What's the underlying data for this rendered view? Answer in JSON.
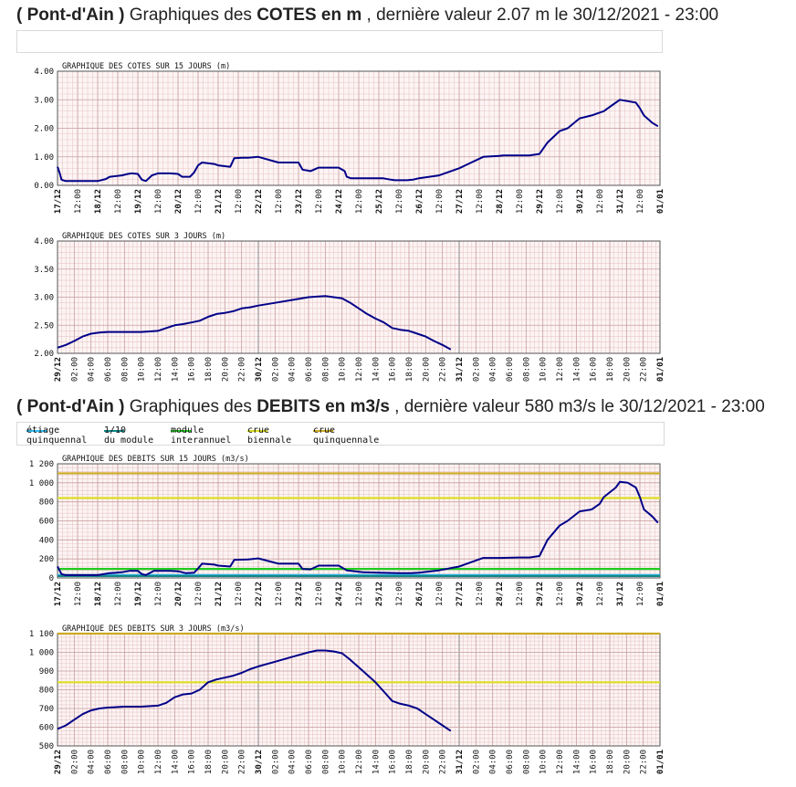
{
  "section1": {
    "title_pre": "( Pont-d'Ain )",
    "title_mid": " Graphiques des ",
    "title_bold": "COTES en m",
    "title_post": " , dernière valeur 2.07 m le 30/12/2021 - 23:00"
  },
  "section2": {
    "title_pre": "( Pont-d'Ain )",
    "title_mid": " Graphiques des ",
    "title_bold": "DEBITS en m3/s",
    "title_post": " , dernière valeur 580 m3/s le 30/12/2021 - 23:00"
  },
  "legend": {
    "items": [
      {
        "text": "étiage\nquinquennal",
        "color": "#33bbee"
      },
      {
        "text": "1/10\ndu module",
        "color": "#118888"
      },
      {
        "text": "module\ninterannuel",
        "color": "#22cc22"
      },
      {
        "text": "crue\nbiennale",
        "color": "#dddd22"
      },
      {
        "text": "crue\nquinquennale",
        "color": "#ccaa22"
      }
    ]
  },
  "colors": {
    "series": "#000088",
    "grid_minor": "#e8c8c8",
    "grid_major": "#c8a0a0",
    "plot_bg": "#fdf4f4"
  },
  "chart_data": [
    {
      "id": "c1",
      "type": "line",
      "title": "GRAPHIQUE DES COTES SUR 15 JOURS (m)",
      "ylim": [
        0,
        4
      ],
      "yticks": [
        0,
        1,
        2,
        3,
        4
      ],
      "ytick_labels": [
        "0.00",
        "1.00",
        "2.00",
        "3.00",
        "4.00"
      ],
      "xlim": [
        0,
        15
      ],
      "xticks": [
        0,
        0.5,
        1,
        1.5,
        2,
        2.5,
        3,
        3.5,
        4,
        4.5,
        5,
        5.5,
        6,
        6.5,
        7,
        7.5,
        8,
        8.5,
        9,
        9.5,
        10,
        10.5,
        11,
        11.5,
        12,
        12.5,
        13,
        13.5,
        14,
        14.5,
        15
      ],
      "xtick_labels": [
        "17/12",
        "12:00",
        "18/12",
        "12:00",
        "19/12",
        "12:00",
        "20/12",
        "12:00",
        "21/12",
        "12:00",
        "22/12",
        "12:00",
        "23/12",
        "12:00",
        "24/12",
        "12:00",
        "25/12",
        "12:00",
        "26/12",
        "12:00",
        "27/12",
        "12:00",
        "28/12",
        "12:00",
        "29/12",
        "12:00",
        "30/12",
        "12:00",
        "31/12",
        "12:00",
        "01/01"
      ],
      "series": [
        {
          "x": [
            0,
            0.05,
            0.1,
            0.2,
            0.5,
            1.0,
            1.2,
            1.3,
            1.6,
            1.75,
            1.85,
            2.0,
            2.1,
            2.2,
            2.35,
            2.5,
            2.8,
            3.0,
            3.1,
            3.3,
            3.4,
            3.5,
            3.6,
            3.9,
            4.0,
            4.3,
            4.4,
            4.6,
            4.75,
            5.0,
            5.5,
            5.65,
            5.7,
            6.0,
            6.1,
            6.3,
            6.5,
            6.6,
            7.0,
            7.15,
            7.2,
            7.3,
            7.6,
            7.9,
            8.1,
            8.3,
            8.4,
            8.55,
            8.6,
            8.7,
            8.85,
            9.0,
            9.5,
            10.0,
            10.6,
            11.0,
            11.1,
            11.2,
            11.3,
            11.5,
            11.7,
            11.75,
            12.0,
            12.2,
            12.5,
            12.7,
            13.0,
            13.3,
            13.5,
            13.6,
            13.8,
            14.0
          ],
          "y": [
            0.65,
            0.45,
            0.2,
            0.15,
            0.15,
            0.15,
            0.22,
            0.3,
            0.35,
            0.4,
            0.42,
            0.4,
            0.2,
            0.15,
            0.35,
            0.42,
            0.42,
            0.4,
            0.3,
            0.3,
            0.45,
            0.7,
            0.8,
            0.75,
            0.7,
            0.65,
            0.95,
            0.97,
            0.97,
            1.0,
            0.8,
            0.8,
            0.8,
            0.8,
            0.55,
            0.5,
            0.62,
            0.62,
            0.62,
            0.5,
            0.3,
            0.25,
            0.25,
            0.25,
            0.25,
            0.2,
            0.18,
            0.18,
            0.18,
            0.18,
            0.2,
            0.25,
            0.35,
            0.6,
            1.0,
            1.03,
            1.05,
            1.05,
            1.05,
            1.05,
            1.05,
            1.05,
            1.1,
            1.5,
            1.9,
            2.0,
            2.35,
            2.45,
            2.55,
            2.6,
            2.8,
            3.0
          ],
          "x_tail": [
            14.0,
            14.2,
            14.4,
            14.5,
            14.6,
            14.8,
            14.95
          ],
          "y_tail": [
            3.0,
            2.95,
            2.9,
            2.7,
            2.45,
            2.2,
            2.07
          ]
        }
      ]
    },
    {
      "id": "c2",
      "type": "line",
      "title": "GRAPHIQUE DES COTES SUR 3 JOURS (m)",
      "ylim": [
        2,
        4
      ],
      "yticks": [
        2,
        2.5,
        3,
        3.5,
        4
      ],
      "ytick_labels": [
        "2.00",
        "2.50",
        "3.00",
        "3.50",
        "4.00"
      ],
      "xlim": [
        0,
        72
      ],
      "xticks": [
        0,
        2,
        4,
        6,
        8,
        10,
        12,
        14,
        16,
        18,
        20,
        22,
        24,
        26,
        28,
        30,
        32,
        34,
        36,
        38,
        40,
        42,
        44,
        46,
        48,
        50,
        52,
        54,
        56,
        58,
        60,
        62,
        64,
        66,
        68,
        70,
        72
      ],
      "xtick_labels": [
        "29/12",
        "02:00",
        "04:00",
        "06:00",
        "08:00",
        "10:00",
        "12:00",
        "14:00",
        "16:00",
        "18:00",
        "20:00",
        "22:00",
        "30/12",
        "02:00",
        "04:00",
        "06:00",
        "08:00",
        "10:00",
        "12:00",
        "14:00",
        "16:00",
        "18:00",
        "20:00",
        "22:00",
        "31/12",
        "02:00",
        "04:00",
        "06:00",
        "08:00",
        "10:00",
        "12:00",
        "14:00",
        "16:00",
        "18:00",
        "20:00",
        "22:00",
        "01/01"
      ],
      "series": [
        {
          "x": [
            0,
            1,
            2,
            3,
            4,
            5,
            6,
            8,
            10,
            12,
            13,
            14,
            15,
            16,
            17,
            18,
            19,
            20,
            21,
            22,
            23,
            24,
            26,
            28,
            30,
            32,
            33,
            34,
            35,
            36,
            37,
            38,
            39,
            40,
            41,
            42,
            43,
            44,
            45,
            46,
            47
          ],
          "y": [
            2.1,
            2.15,
            2.22,
            2.3,
            2.35,
            2.37,
            2.38,
            2.38,
            2.38,
            2.4,
            2.45,
            2.5,
            2.52,
            2.55,
            2.58,
            2.65,
            2.7,
            2.72,
            2.75,
            2.8,
            2.82,
            2.85,
            2.9,
            2.95,
            3.0,
            3.02,
            3.0,
            2.98,
            2.9,
            2.8,
            2.7,
            2.62,
            2.55,
            2.45,
            2.42,
            2.4,
            2.35,
            2.3,
            2.22,
            2.15,
            2.07
          ]
        }
      ]
    },
    {
      "id": "c3",
      "type": "line",
      "title": "GRAPHIQUE DES DEBITS SUR 15 JOURS (m3/s)",
      "ylim": [
        0,
        1200
      ],
      "yticks": [
        0,
        200,
        400,
        600,
        800,
        1000,
        1200
      ],
      "ytick_labels": [
        "0",
        "200",
        "400",
        "600",
        "800",
        "1 000",
        "1 200"
      ],
      "xlim": [
        0,
        15
      ],
      "xticks": [
        0,
        0.5,
        1,
        1.5,
        2,
        2.5,
        3,
        3.5,
        4,
        4.5,
        5,
        5.5,
        6,
        6.5,
        7,
        7.5,
        8,
        8.5,
        9,
        9.5,
        10,
        10.5,
        11,
        11.5,
        12,
        12.5,
        13,
        13.5,
        14,
        14.5,
        15
      ],
      "xtick_labels": [
        "17/12",
        "12:00",
        "18/12",
        "12:00",
        "19/12",
        "12:00",
        "20/12",
        "12:00",
        "21/12",
        "12:00",
        "22/12",
        "12:00",
        "23/12",
        "12:00",
        "24/12",
        "12:00",
        "25/12",
        "12:00",
        "26/12",
        "12:00",
        "27/12",
        "12:00",
        "28/12",
        "12:00",
        "29/12",
        "12:00",
        "30/12",
        "12:00",
        "31/12",
        "12:00",
        "01/01"
      ],
      "thresholds": [
        {
          "value": 30,
          "color": "#33bbee"
        },
        {
          "value": 20,
          "color": "#118888"
        },
        {
          "value": 95,
          "color": "#22cc22"
        },
        {
          "value": 840,
          "color": "#dddd22"
        },
        {
          "value": 1100,
          "color": "#ccaa22"
        }
      ],
      "series": [
        {
          "x": [
            0,
            0.1,
            0.2,
            0.5,
            1.0,
            1.3,
            1.6,
            1.8,
            2.0,
            2.1,
            2.2,
            2.4,
            2.8,
            3.0,
            3.2,
            3.4,
            3.5,
            3.6,
            3.9,
            4.0,
            4.3,
            4.4,
            4.75,
            5.0,
            5.5,
            5.7,
            6.0,
            6.1,
            6.3,
            6.5,
            7.0,
            7.2,
            7.6,
            8.0,
            8.5,
            8.8,
            9.0,
            9.5,
            10.0,
            10.6,
            11.0,
            11.5,
            11.75,
            12.0,
            12.2,
            12.5,
            12.7,
            13.0,
            13.3,
            13.5,
            13.6,
            13.9,
            14.0
          ],
          "y": [
            120,
            40,
            30,
            30,
            30,
            50,
            60,
            75,
            75,
            40,
            30,
            75,
            75,
            70,
            50,
            55,
            100,
            150,
            140,
            130,
            120,
            190,
            195,
            205,
            150,
            150,
            150,
            95,
            90,
            130,
            130,
            80,
            60,
            55,
            50,
            50,
            55,
            80,
            120,
            210,
            210,
            215,
            215,
            230,
            400,
            550,
            600,
            700,
            720,
            780,
            850,
            950,
            1010
          ],
          "x_tail": [
            14.0,
            14.2,
            14.4,
            14.5,
            14.6,
            14.8,
            14.95
          ],
          "y_tail": [
            1010,
            1000,
            950,
            850,
            720,
            650,
            580
          ]
        }
      ]
    },
    {
      "id": "c4",
      "type": "line",
      "title": "GRAPHIQUE DES DEBITS SUR 3 JOURS (m3/s)",
      "ylim": [
        500,
        1100
      ],
      "yticks": [
        500,
        600,
        700,
        800,
        900,
        1000,
        1100
      ],
      "ytick_labels": [
        "500",
        "600",
        "700",
        "800",
        "900",
        "1 000",
        "1 100"
      ],
      "xlim": [
        0,
        72
      ],
      "xticks": [
        0,
        2,
        4,
        6,
        8,
        10,
        12,
        14,
        16,
        18,
        20,
        22,
        24,
        26,
        28,
        30,
        32,
        34,
        36,
        38,
        40,
        42,
        44,
        46,
        48,
        50,
        52,
        54,
        56,
        58,
        60,
        62,
        64,
        66,
        68,
        70,
        72
      ],
      "xtick_labels": [
        "29/12",
        "02:00",
        "04:00",
        "06:00",
        "08:00",
        "10:00",
        "12:00",
        "14:00",
        "16:00",
        "18:00",
        "20:00",
        "22:00",
        "30/12",
        "02:00",
        "04:00",
        "06:00",
        "08:00",
        "10:00",
        "12:00",
        "14:00",
        "16:00",
        "18:00",
        "20:00",
        "22:00",
        "31/12",
        "02:00",
        "04:00",
        "06:00",
        "08:00",
        "10:00",
        "12:00",
        "14:00",
        "16:00",
        "18:00",
        "20:00",
        "22:00",
        "01/01"
      ],
      "thresholds": [
        {
          "value": 840,
          "color": "#dddd22"
        },
        {
          "value": 1100,
          "color": "#ccaa22"
        }
      ],
      "series": [
        {
          "x": [
            0,
            1,
            2,
            3,
            4,
            5,
            6,
            8,
            10,
            12,
            13,
            14,
            15,
            16,
            17,
            18,
            19,
            20,
            21,
            22,
            23,
            24,
            26,
            28,
            30,
            31,
            32,
            33,
            34,
            35,
            36,
            37,
            38,
            39,
            40,
            41,
            42,
            43,
            44,
            45,
            46,
            47
          ],
          "y": [
            590,
            610,
            640,
            670,
            690,
            700,
            705,
            710,
            710,
            715,
            730,
            760,
            775,
            780,
            800,
            840,
            855,
            865,
            875,
            890,
            910,
            925,
            950,
            975,
            1000,
            1010,
            1010,
            1005,
            995,
            960,
            920,
            880,
            840,
            790,
            740,
            725,
            715,
            700,
            670,
            640,
            610,
            580
          ]
        }
      ]
    }
  ]
}
